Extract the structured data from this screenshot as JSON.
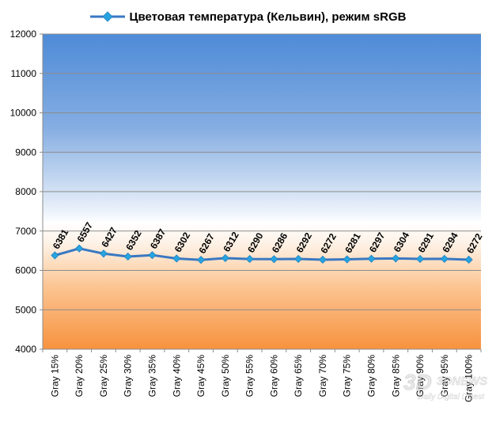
{
  "chart_data": {
    "type": "line",
    "title": "",
    "categories": [
      "Gray 15%",
      "Gray 20%",
      "Gray 25%",
      "Gray 30%",
      "Gray 35%",
      "Gray 40%",
      "Gray 45%",
      "Gray 50%",
      "Gray 55%",
      "Gray 60%",
      "Gray 65%",
      "Gray 70%",
      "Gray 75%",
      "Gray 80%",
      "Gray 85%",
      "Gray 90%",
      "Gray 95%",
      "Gray 100%"
    ],
    "series": [
      {
        "name": "Цветовая температура (Кельвин), режим sRGB",
        "values": [
          6381,
          6557,
          6427,
          6352,
          6387,
          6302,
          6267,
          6312,
          6290,
          6286,
          6292,
          6272,
          6281,
          6297,
          6304,
          6291,
          6294,
          6272
        ]
      }
    ],
    "y_ticks": [
      "4000",
      "5000",
      "6000",
      "7000",
      "8000",
      "9000",
      "10000",
      "11000",
      "12000"
    ],
    "ylim": [
      4000,
      12000
    ],
    "xlabel": "",
    "ylabel": "",
    "grid": true,
    "legend_position": "top",
    "data_labels": true,
    "background": "gradient: blue above 7000, white near 6500, orange below 6000",
    "colors": {
      "series_line": "#3A78C2",
      "marker": "#27A4E0",
      "bg_top": "#4E8BD7",
      "bg_bottom": "#F89A48"
    }
  },
  "watermark": {
    "brand": "3DNEWS",
    "tagline": "Daily Digital Digest",
    "logo_icon": "3dnews-logo-icon"
  }
}
